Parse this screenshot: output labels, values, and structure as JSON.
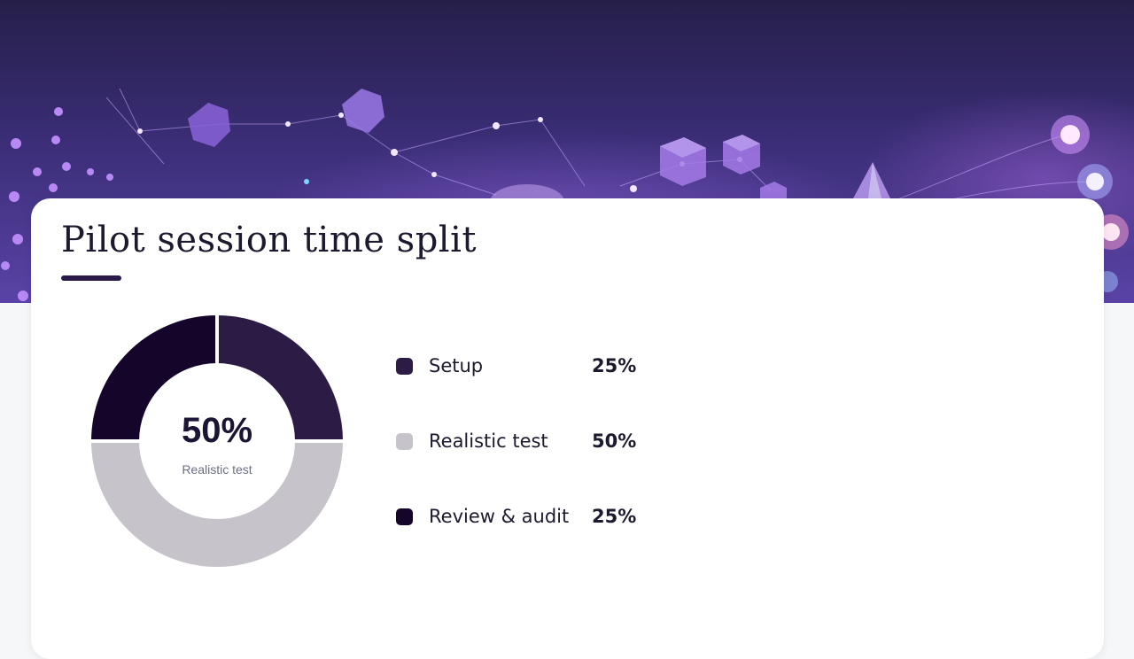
{
  "slide": {
    "title": "Pilot session time split"
  },
  "colors": {
    "setup": "#2c1b45",
    "realistic_test": "#c6c3cb",
    "review_audit": "#15052b"
  },
  "chart_data": {
    "type": "pie",
    "title": "Pilot session time split",
    "center_value": "50%",
    "center_label": "Realistic test",
    "slices": [
      {
        "label": "Setup",
        "value": 25,
        "value_label": "25%",
        "color": "#2c1b45"
      },
      {
        "label": "Realistic test",
        "value": 50,
        "value_label": "50%",
        "color": "#c6c3cb"
      },
      {
        "label": "Review & audit",
        "value": 25,
        "value_label": "25%",
        "color": "#15052b"
      }
    ],
    "legend_position": "right"
  }
}
